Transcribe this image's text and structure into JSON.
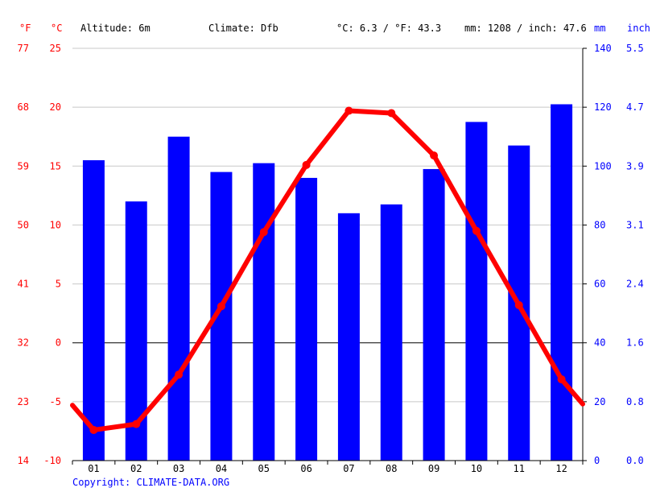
{
  "header": {
    "unit_f": "°F",
    "unit_c": "°C",
    "altitude": "Altitude: 6m",
    "climate": "Climate: Dfb",
    "temp_avg": "°C: 6.3 / °F: 43.3",
    "precip_total": "mm: 1208 / inch: 47.6",
    "unit_mm": "mm",
    "unit_inch": "inch"
  },
  "colors": {
    "temp_line": "#ff0000",
    "precip_bar": "#0000ff",
    "grid": "#c8c8c8",
    "zero_line": "#000000",
    "temp_axis_label": "#ff0000",
    "precip_axis_label": "#0000ff"
  },
  "chart_data": {
    "type": "bar",
    "categories": [
      "01",
      "02",
      "03",
      "04",
      "05",
      "06",
      "07",
      "08",
      "09",
      "10",
      "11",
      "12"
    ],
    "series": [
      {
        "type": "bar",
        "axis": "right",
        "values": [
          102,
          88,
          110,
          98,
          101,
          96,
          84,
          87,
          99,
          115,
          107,
          121
        ]
      },
      {
        "type": "line",
        "axis": "left",
        "values": [
          -7.4,
          -6.9,
          -2.7,
          3.1,
          9.4,
          15.1,
          19.7,
          19.5,
          15.9,
          9.5,
          3.2,
          -3.1
        ]
      }
    ],
    "line_endpoints": {
      "start": -5.3,
      "end": -5.2
    },
    "y_left_celsius": {
      "ticks": [
        25,
        20,
        15,
        10,
        5,
        0,
        -5,
        -10
      ],
      "ylim": [
        -10,
        25
      ]
    },
    "y_left_fahrenheit": {
      "ticks": [
        77,
        68,
        59,
        50,
        41,
        32,
        23,
        14
      ]
    },
    "y_right_mm": {
      "ticks": [
        140,
        120,
        100,
        80,
        60,
        40,
        20,
        0
      ],
      "ylim": [
        0,
        140
      ]
    },
    "y_right_inch": {
      "ticks": [
        "5.5",
        "4.7",
        "3.9",
        "3.1",
        "2.4",
        "1.6",
        "0.8",
        "0.0"
      ]
    },
    "grid": true
  },
  "footer": {
    "copyright": "Copyright: CLIMATE-DATA.ORG"
  }
}
